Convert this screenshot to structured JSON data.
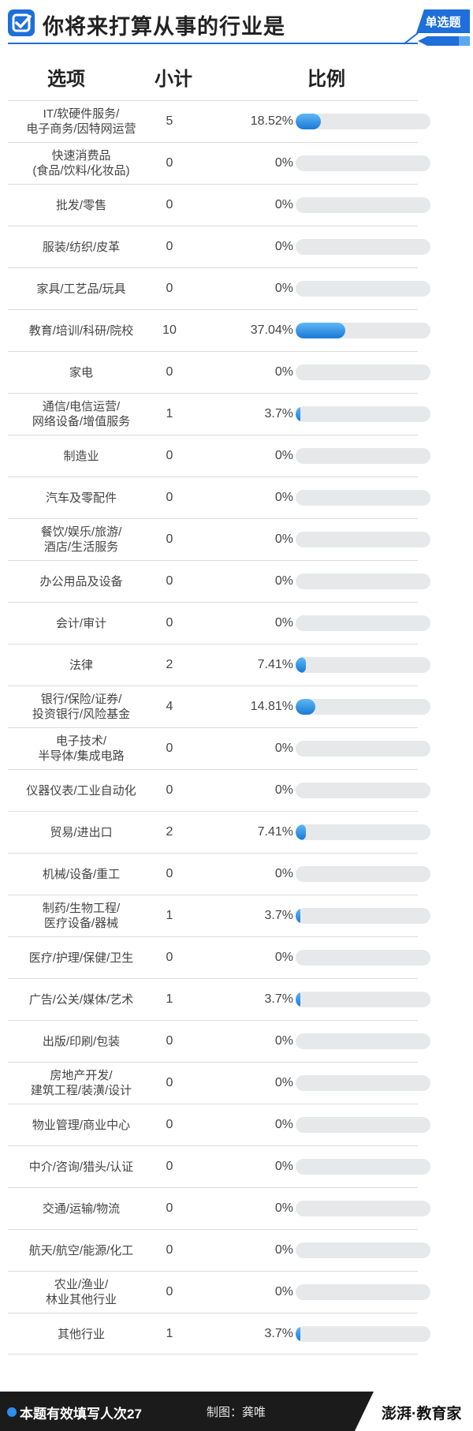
{
  "header": {
    "title": "你将来打算从事的行业是",
    "badge": "单选题"
  },
  "columns": {
    "option": "选项",
    "count": "小计",
    "ratio": "比例"
  },
  "colors": {
    "accent": "#1e6fd9",
    "bar_fill": "#2a8ae6",
    "bar_track": "#e7e8ea"
  },
  "chart_data": {
    "type": "table",
    "columns": [
      "选项",
      "小计",
      "比例"
    ],
    "rows": [
      {
        "label": "IT/软硬件服务/\n电子商务/因特网运营",
        "count": "5",
        "percent": "18.52%",
        "value": 18.52
      },
      {
        "label": "快速消费品\n(食品/饮料/化妆品)",
        "count": "0",
        "percent": "0%",
        "value": 0
      },
      {
        "label": "批发/零售",
        "count": "0",
        "percent": "0%",
        "value": 0
      },
      {
        "label": "服装/纺织/皮革",
        "count": "0",
        "percent": "0%",
        "value": 0
      },
      {
        "label": "家具/工艺品/玩具",
        "count": "0",
        "percent": "0%",
        "value": 0
      },
      {
        "label": "教育/培训/科研/院校",
        "count": "10",
        "percent": "37.04%",
        "value": 37.04
      },
      {
        "label": "家电",
        "count": "0",
        "percent": "0%",
        "value": 0
      },
      {
        "label": "通信/电信运营/\n网络设备/增值服务",
        "count": "1",
        "percent": "3.7%",
        "value": 3.7
      },
      {
        "label": "制造业",
        "count": "0",
        "percent": "0%",
        "value": 0
      },
      {
        "label": "汽车及零配件",
        "count": "0",
        "percent": "0%",
        "value": 0
      },
      {
        "label": "餐饮/娱乐/旅游/\n酒店/生活服务",
        "count": "0",
        "percent": "0%",
        "value": 0
      },
      {
        "label": "办公用品及设备",
        "count": "0",
        "percent": "0%",
        "value": 0
      },
      {
        "label": "会计/审计",
        "count": "0",
        "percent": "0%",
        "value": 0
      },
      {
        "label": "法律",
        "count": "2",
        "percent": "7.41%",
        "value": 7.41
      },
      {
        "label": "银行/保险/证券/\n投资银行/风险基金",
        "count": "4",
        "percent": "14.81%",
        "value": 14.81
      },
      {
        "label": "电子技术/\n半导体/集成电路",
        "count": "0",
        "percent": "0%",
        "value": 0
      },
      {
        "label": "仪器仪表/工业自动化",
        "count": "0",
        "percent": "0%",
        "value": 0
      },
      {
        "label": "贸易/进出口",
        "count": "2",
        "percent": "7.41%",
        "value": 7.41
      },
      {
        "label": "机械/设备/重工",
        "count": "0",
        "percent": "0%",
        "value": 0
      },
      {
        "label": "制药/生物工程/\n医疗设备/器械",
        "count": "1",
        "percent": "3.7%",
        "value": 3.7
      },
      {
        "label": "医疗/护理/保健/卫生",
        "count": "0",
        "percent": "0%",
        "value": 0
      },
      {
        "label": "广告/公关/媒体/艺术",
        "count": "1",
        "percent": "3.7%",
        "value": 3.7
      },
      {
        "label": "出版/印刷/包装",
        "count": "0",
        "percent": "0%",
        "value": 0
      },
      {
        "label": "房地产开发/\n建筑工程/装潢/设计",
        "count": "0",
        "percent": "0%",
        "value": 0
      },
      {
        "label": "物业管理/商业中心",
        "count": "0",
        "percent": "0%",
        "value": 0
      },
      {
        "label": "中介/咨询/猎头/认证",
        "count": "0",
        "percent": "0%",
        "value": 0
      },
      {
        "label": "交通/运输/物流",
        "count": "0",
        "percent": "0%",
        "value": 0
      },
      {
        "label": "航天/航空/能源/化工",
        "count": "0",
        "percent": "0%",
        "value": 0
      },
      {
        "label": "农业/渔业/\n林业其他行业",
        "count": "0",
        "percent": "0%",
        "value": 0
      },
      {
        "label": "其他行业",
        "count": "1",
        "percent": "3.7%",
        "value": 3.7
      }
    ]
  },
  "footer": {
    "respondents": "本题有效填写人次27",
    "credit": "制图：龚唯",
    "brand": "澎湃·教育家"
  }
}
